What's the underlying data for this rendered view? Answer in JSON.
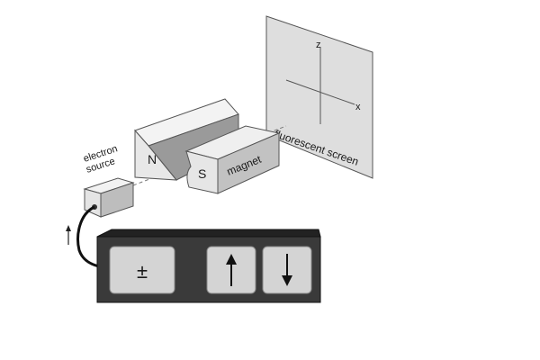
{
  "labels": {
    "electron_source_line1": "electron",
    "electron_source_line2": "source",
    "magnet_north": "N",
    "magnet_south": "S",
    "magnet": "magnet",
    "screen": "fluorescent screen",
    "axis_z": "z",
    "axis_x": "x"
  },
  "control_panel": {
    "buttons": [
      {
        "symbol": "±",
        "icon": "plus-minus-icon"
      },
      {
        "symbol": "↑",
        "icon": "arrow-up-icon"
      },
      {
        "symbol": "↓",
        "icon": "arrow-down-icon"
      }
    ]
  },
  "colors": {
    "screen": "#dcdcdc",
    "magnet_light": "#f0f0f0",
    "magnet_mid": "#bdbdbd",
    "magnet_dark": "#7a7a7a",
    "panel": "#3c3c3c",
    "button": "#d2d2d2"
  }
}
